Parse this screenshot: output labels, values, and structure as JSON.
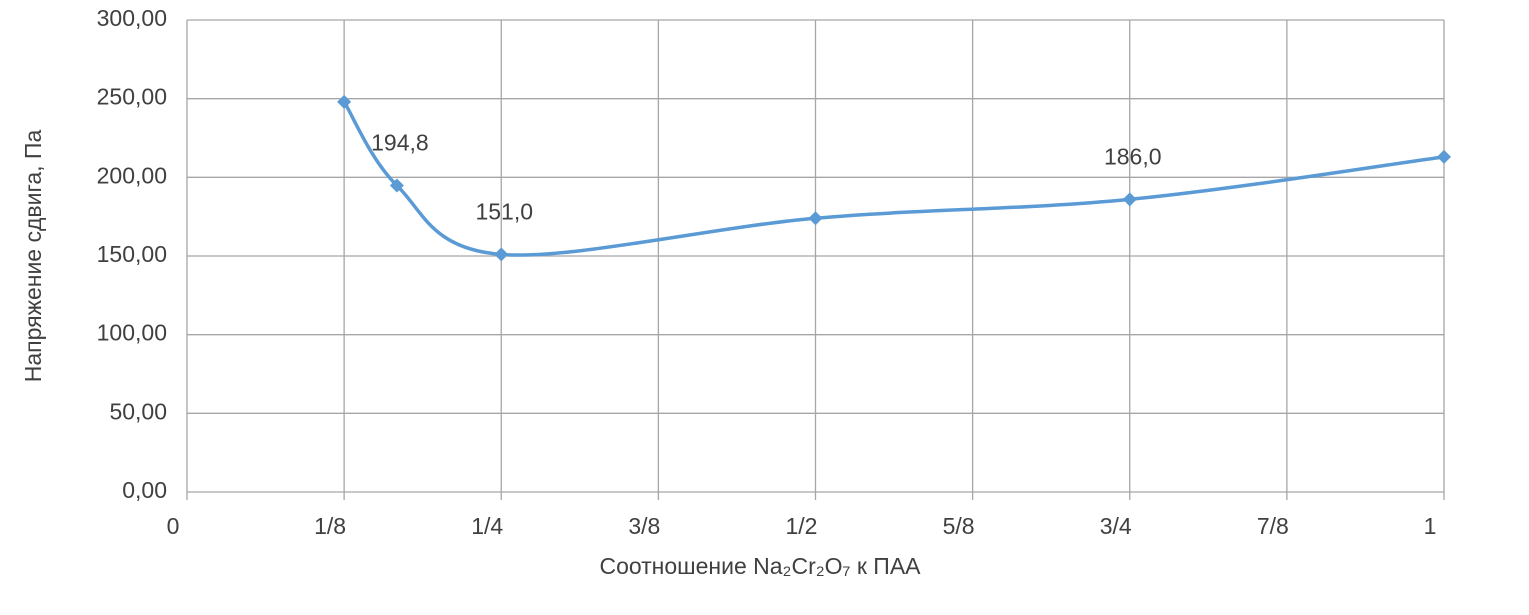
{
  "chart_data": {
    "type": "line",
    "x_label": "Соотношение Na₂Cr₂O₇ к ПАА",
    "y_label": "Напряжение сдвига, Па",
    "x": [
      0.125,
      0.167,
      0.25,
      0.5,
      0.75,
      1
    ],
    "series": [
      {
        "name": "Напряжение сдвига",
        "color": "#5b9bd5",
        "values": [
          248,
          194.8,
          151,
          174,
          186,
          213
        ],
        "value_labels": [
          null,
          "194,8",
          "151,0",
          null,
          "186,0",
          null
        ]
      }
    ],
    "xlim": [
      0,
      1
    ],
    "xticks": [
      0,
      {
        "value": 0.125,
        "label": "1/8"
      },
      {
        "value": 0.25,
        "label": "1/4"
      },
      {
        "value": 0.375,
        "label": "3/8"
      },
      {
        "value": 0.5,
        "label": "1/2"
      },
      {
        "value": 0.625,
        "label": "5/8"
      },
      {
        "value": 0.75,
        "label": "3/4"
      },
      {
        "value": 0.875,
        "label": "7/8"
      },
      1
    ],
    "ylim": [
      0,
      300
    ],
    "yticks": [
      {
        "value": 0,
        "label": "0,00"
      },
      {
        "value": 50,
        "label": "50,00"
      },
      {
        "value": 100,
        "label": "100,00"
      },
      {
        "value": 150,
        "label": "150,00"
      },
      {
        "value": 200,
        "label": "200,00"
      },
      {
        "value": 250,
        "label": "250,00"
      },
      {
        "value": 300,
        "label": "300,00"
      }
    ],
    "grid": true,
    "smooth": true
  }
}
